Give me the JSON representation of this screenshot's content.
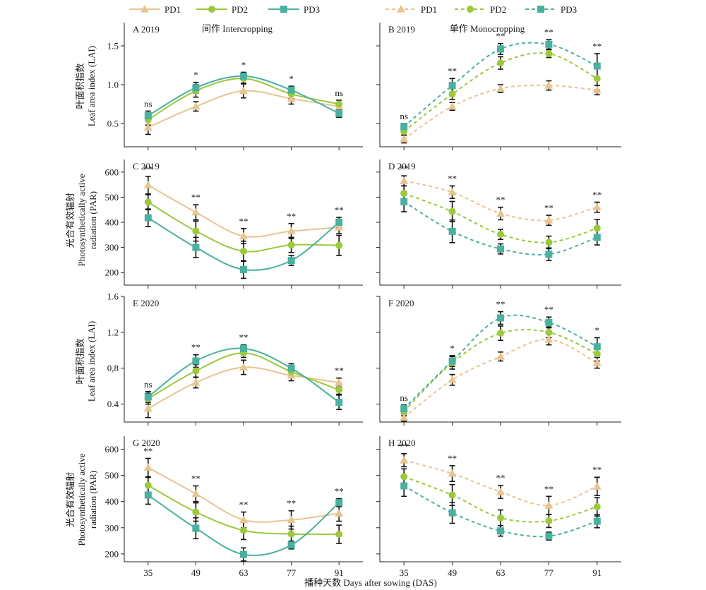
{
  "legend": {
    "intercropping": [
      {
        "label": "PD1",
        "color": "#e8c490",
        "marker": "triangle"
      },
      {
        "label": "PD2",
        "color": "#9bc93c",
        "marker": "circle"
      },
      {
        "label": "PD3",
        "color": "#4ab0a0",
        "marker": "square"
      }
    ],
    "monocropping": [
      {
        "label": "PD1",
        "color": "#e8c490",
        "marker": "triangle"
      },
      {
        "label": "PD2",
        "color": "#9bc93c",
        "marker": "circle"
      },
      {
        "label": "PD3",
        "color": "#4ab0a0",
        "marker": "square"
      }
    ]
  },
  "headers": {
    "intercropping": "间作 Intercropping",
    "monocropping": "单作 Monocropping"
  },
  "ylabels": {
    "lai": [
      "叶面积指数",
      "Leaf area index (LAI)"
    ],
    "par": [
      "光合有效辐射",
      "Photosynthetically active",
      "radiation (PAR)"
    ]
  },
  "xlabel": "播种天数 Days after  sowing (DAS)",
  "colors": {
    "PD1": "#e8c490",
    "PD2": "#9bc93c",
    "PD3": "#4ab0a0",
    "axis": "#222222"
  },
  "chart_data": [
    {
      "panel": "A 2019",
      "type": "line",
      "cropping": "intercropping",
      "metric": "LAI",
      "x": [
        35,
        49,
        63,
        77,
        91
      ],
      "ylim": [
        0.2,
        1.8
      ],
      "yticks": [
        0.5,
        1.0,
        1.5
      ],
      "ytick_labels": [
        "0.5",
        "1.0",
        "1.5"
      ],
      "series": [
        {
          "name": "PD1",
          "values": [
            0.45,
            0.72,
            0.92,
            0.82,
            0.72
          ],
          "errors": [
            0.09,
            0.06,
            0.09,
            0.07,
            0.05
          ]
        },
        {
          "name": "PD2",
          "values": [
            0.55,
            0.92,
            1.08,
            0.88,
            0.75
          ],
          "errors": [
            0.07,
            0.08,
            0.06,
            0.06,
            0.05
          ]
        },
        {
          "name": "PD3",
          "values": [
            0.6,
            0.96,
            1.11,
            0.93,
            0.63
          ],
          "errors": [
            0.06,
            0.07,
            0.05,
            0.05,
            0.05
          ]
        }
      ],
      "annotations": [
        "ns",
        "*",
        "*",
        "*",
        "ns"
      ]
    },
    {
      "panel": "B 2019",
      "type": "line",
      "cropping": "monocropping",
      "metric": "LAI",
      "x": [
        35,
        49,
        63,
        77,
        91
      ],
      "ylim": [
        0.2,
        1.8
      ],
      "yticks": [
        0.5,
        1.0,
        1.5
      ],
      "ytick_labels": [
        "0.5",
        "1.0",
        "1.5"
      ],
      "series": [
        {
          "name": "PD1",
          "values": [
            0.3,
            0.72,
            0.95,
            0.99,
            0.93
          ],
          "errors": [
            0.05,
            0.05,
            0.05,
            0.06,
            0.06
          ]
        },
        {
          "name": "PD2",
          "values": [
            0.4,
            0.88,
            1.28,
            1.4,
            1.08
          ],
          "errors": [
            0.05,
            0.07,
            0.08,
            0.05,
            0.15
          ]
        },
        {
          "name": "PD3",
          "values": [
            0.46,
            0.99,
            1.46,
            1.52,
            1.24
          ],
          "errors": [
            0.04,
            0.09,
            0.07,
            0.06,
            0.16
          ]
        }
      ],
      "annotations": [
        "ns",
        "**",
        "**",
        "**",
        "**"
      ]
    },
    {
      "panel": "C 2019",
      "type": "line",
      "cropping": "intercropping",
      "metric": "PAR",
      "x": [
        35,
        49,
        63,
        77,
        91
      ],
      "ylim": [
        150,
        650
      ],
      "yticks": [
        200,
        300,
        400,
        500,
        600
      ],
      "ytick_labels": [
        "200",
        "300",
        "400",
        "500",
        "600"
      ],
      "series": [
        {
          "name": "PD1",
          "values": [
            548,
            440,
            345,
            365,
            380
          ],
          "errors": [
            35,
            30,
            30,
            30,
            25
          ]
        },
        {
          "name": "PD2",
          "values": [
            480,
            365,
            285,
            310,
            308
          ],
          "errors": [
            30,
            40,
            40,
            30,
            40
          ]
        },
        {
          "name": "PD3",
          "values": [
            418,
            300,
            212,
            248,
            400
          ],
          "errors": [
            35,
            40,
            35,
            20,
            20
          ]
        }
      ],
      "annotations": [
        "**",
        "**",
        "**",
        "**",
        "**"
      ]
    },
    {
      "panel": "D 2019",
      "type": "line",
      "cropping": "monocropping",
      "metric": "PAR",
      "x": [
        35,
        49,
        63,
        77,
        91
      ],
      "ylim": [
        150,
        650
      ],
      "yticks": [
        200,
        300,
        400,
        500,
        600
      ],
      "ytick_labels": [
        "200",
        "300",
        "400",
        "500",
        "600"
      ],
      "series": [
        {
          "name": "PD1",
          "values": [
            565,
            520,
            435,
            408,
            460
          ],
          "errors": [
            20,
            25,
            25,
            20,
            20
          ]
        },
        {
          "name": "PD2",
          "values": [
            515,
            443,
            352,
            320,
            376
          ],
          "errors": [
            30,
            40,
            20,
            25,
            35
          ]
        },
        {
          "name": "PD3",
          "values": [
            482,
            364,
            294,
            273,
            340
          ],
          "errors": [
            40,
            45,
            20,
            25,
            30
          ]
        }
      ],
      "annotations": [
        "**",
        "**",
        "**",
        "**",
        "**"
      ]
    },
    {
      "panel": "E 2020",
      "type": "line",
      "cropping": "intercropping",
      "metric": "LAI",
      "x": [
        35,
        49,
        63,
        77,
        91
      ],
      "ylim": [
        0.2,
        1.6
      ],
      "yticks": [
        0.4,
        0.8,
        1.2,
        1.6
      ],
      "ytick_labels": [
        "0.4",
        "0,8",
        "1.2",
        "1.6"
      ],
      "series": [
        {
          "name": "PD1",
          "values": [
            0.35,
            0.64,
            0.81,
            0.72,
            0.64
          ],
          "errors": [
            0.1,
            0.06,
            0.08,
            0.06,
            0.05
          ]
        },
        {
          "name": "PD2",
          "values": [
            0.46,
            0.77,
            0.97,
            0.76,
            0.56
          ],
          "errors": [
            0.06,
            0.07,
            0.05,
            0.05,
            0.05
          ]
        },
        {
          "name": "PD3",
          "values": [
            0.48,
            0.88,
            1.02,
            0.8,
            0.42
          ],
          "errors": [
            0.06,
            0.07,
            0.04,
            0.05,
            0.08
          ]
        }
      ],
      "annotations": [
        "ns",
        "**",
        "**",
        "",
        "**"
      ]
    },
    {
      "panel": "F 2020",
      "type": "line",
      "cropping": "monocropping",
      "metric": "LAI",
      "x": [
        35,
        49,
        63,
        77,
        91
      ],
      "ylim": [
        0.2,
        1.6
      ],
      "yticks": [
        0.4,
        0.8,
        1.2,
        1.6
      ],
      "ytick_labels": [
        "0.4",
        "0.8",
        "1.2",
        "1.6"
      ],
      "series": [
        {
          "name": "PD1",
          "values": [
            0.25,
            0.67,
            0.93,
            1.12,
            0.86
          ],
          "errors": [
            0.04,
            0.06,
            0.05,
            0.06,
            0.06
          ]
        },
        {
          "name": "PD2",
          "values": [
            0.32,
            0.86,
            1.19,
            1.2,
            0.96
          ],
          "errors": [
            0.05,
            0.07,
            0.08,
            0.06,
            0.08
          ]
        },
        {
          "name": "PD3",
          "values": [
            0.35,
            0.88,
            1.36,
            1.31,
            1.04
          ],
          "errors": [
            0.04,
            0.06,
            0.07,
            0.06,
            0.1
          ]
        }
      ],
      "annotations": [
        "ns",
        "*",
        "**",
        "**",
        "*"
      ]
    },
    {
      "panel": "G 2020",
      "type": "line",
      "cropping": "intercropping",
      "metric": "PAR",
      "x": [
        35,
        49,
        63,
        77,
        91
      ],
      "ylim": [
        170,
        650
      ],
      "yticks": [
        200,
        300,
        400,
        500,
        600
      ],
      "ytick_labels": [
        "200",
        "300",
        "400",
        "500",
        "600"
      ],
      "series": [
        {
          "name": "PD1",
          "values": [
            530,
            430,
            330,
            330,
            355
          ],
          "errors": [
            35,
            30,
            30,
            35,
            30
          ]
        },
        {
          "name": "PD2",
          "values": [
            462,
            360,
            290,
            276,
            275
          ],
          "errors": [
            30,
            35,
            35,
            30,
            35
          ]
        },
        {
          "name": "PD3",
          "values": [
            425,
            298,
            198,
            234,
            396
          ],
          "errors": [
            35,
            40,
            25,
            15,
            15
          ]
        }
      ],
      "annotations": [
        "**",
        "**",
        "**",
        "**",
        "**"
      ]
    },
    {
      "panel": "H 2020",
      "type": "line",
      "cropping": "monocropping",
      "metric": "PAR",
      "x": [
        35,
        49,
        63,
        77,
        91
      ],
      "ylim": [
        170,
        650
      ],
      "yticks": [
        200,
        300,
        400,
        500,
        600
      ],
      "ytick_labels": [
        "200",
        "300",
        "400",
        "500",
        "600"
      ],
      "series": [
        {
          "name": "PD1",
          "values": [
            558,
            507,
            437,
            385,
            458
          ],
          "errors": [
            25,
            30,
            25,
            35,
            35
          ]
        },
        {
          "name": "PD2",
          "values": [
            495,
            425,
            338,
            326,
            380
          ],
          "errors": [
            30,
            40,
            30,
            25,
            35
          ]
        },
        {
          "name": "PD3",
          "values": [
            460,
            357,
            288,
            268,
            325
          ],
          "errors": [
            40,
            40,
            20,
            15,
            25
          ]
        }
      ],
      "annotations": [
        "**",
        "**",
        "**",
        "**",
        "**"
      ]
    }
  ]
}
